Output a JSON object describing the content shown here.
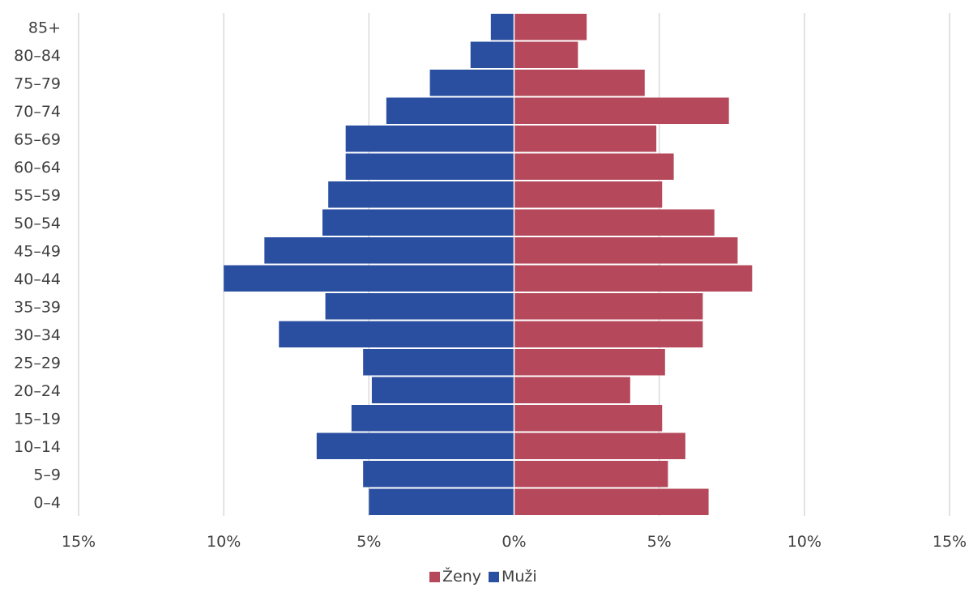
{
  "chart_data": {
    "type": "bar",
    "orientation": "horizontal",
    "categories": [
      "85+",
      "80–84",
      "75–79",
      "70–74",
      "65–69",
      "60–64",
      "55–59",
      "50–54",
      "45–49",
      "40–44",
      "35–39",
      "30–34",
      "25–29",
      "20–24",
      "15–19",
      "10–14",
      "5–9",
      "0–4"
    ],
    "series": [
      {
        "name": "Ženy",
        "color": "#b5495b",
        "side": "right",
        "values": [
          2.5,
          2.2,
          4.5,
          7.4,
          4.9,
          5.5,
          5.1,
          6.9,
          7.7,
          8.2,
          6.5,
          6.5,
          5.2,
          4.0,
          5.1,
          5.9,
          5.3,
          6.7
        ]
      },
      {
        "name": "Muži",
        "color": "#2b4fa0",
        "side": "left",
        "values": [
          0.8,
          1.5,
          2.9,
          4.4,
          5.8,
          5.8,
          6.4,
          6.6,
          8.6,
          10.0,
          6.5,
          8.1,
          5.2,
          4.9,
          5.6,
          6.8,
          5.2,
          5.0
        ]
      }
    ],
    "xlim": [
      -15,
      15
    ],
    "x_ticks": [
      -15,
      -10,
      -5,
      0,
      5,
      10,
      15
    ],
    "x_tick_labels": [
      "15%",
      "10%",
      "5%",
      "0%",
      "5%",
      "10%",
      "15%"
    ],
    "legend": {
      "position": "bottom",
      "items": [
        "Ženy",
        "Muži"
      ]
    },
    "grid": true,
    "title": "",
    "xlabel": "",
    "ylabel": ""
  }
}
